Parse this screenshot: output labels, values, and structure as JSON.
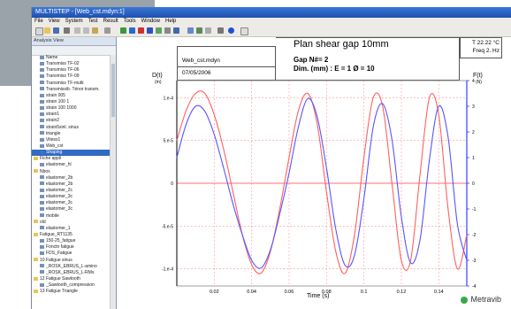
{
  "window": {
    "title": "MULTISTEP - [Web_cst.mdyn:1]",
    "menus": [
      "File",
      "View",
      "System",
      "Test",
      "Result",
      "Tools",
      "Window",
      "Help"
    ]
  },
  "sidebar": {
    "header": "Analysis View",
    "items": [
      {
        "label": "Name",
        "kind": "item"
      },
      {
        "label": "Transmiss TF-02",
        "kind": "item"
      },
      {
        "label": "Transmiss TF-06",
        "kind": "item"
      },
      {
        "label": "Transmiss TF-09",
        "kind": "item"
      },
      {
        "label": "Transmiss TF-multi",
        "kind": "item"
      },
      {
        "label": "Transmissib. Ténor transm.",
        "kind": "item"
      },
      {
        "label": "strain 005",
        "kind": "item"
      },
      {
        "label": "strain 100 1",
        "kind": "item"
      },
      {
        "label": "strain 100 1000",
        "kind": "item"
      },
      {
        "label": "strain1",
        "kind": "item"
      },
      {
        "label": "strain2",
        "kind": "item"
      },
      {
        "label": "strain5sinl. sinus",
        "kind": "item"
      },
      {
        "label": "triangle",
        "kind": "item"
      },
      {
        "label": "Vitess1",
        "kind": "item"
      },
      {
        "label": "Web_cst",
        "kind": "item"
      },
      {
        "label": "Shaping",
        "kind": "selected"
      },
      {
        "label": "Fiche appli",
        "kind": "folder"
      },
      {
        "label": "elastomer_hl",
        "kind": "item"
      },
      {
        "label": "Nbox",
        "kind": "folder"
      },
      {
        "label": "elastomer_2b",
        "kind": "item"
      },
      {
        "label": "elastomer_2b",
        "kind": "item"
      },
      {
        "label": "elastomer_2c",
        "kind": "item"
      },
      {
        "label": "elastomer_3c",
        "kind": "item"
      },
      {
        "label": "elastomer_3c",
        "kind": "item"
      },
      {
        "label": "elastomer_3c",
        "kind": "item"
      },
      {
        "label": "mobile",
        "kind": "item"
      },
      {
        "label": "old",
        "kind": "folder"
      },
      {
        "label": "elastomer_1",
        "kind": "item"
      },
      {
        "label": "Fatigue_RT1135",
        "kind": "folder"
      },
      {
        "label": "150-25_fatigue",
        "kind": "item"
      },
      {
        "label": "Fonctn fatigue",
        "kind": "item"
      },
      {
        "label": "FDS_Fatigue",
        "kind": "item"
      },
      {
        "label": "10 Fatigue sinus",
        "kind": "folder"
      },
      {
        "label": "_ROSK_EBRUS_L-amino",
        "kind": "item"
      },
      {
        "label": "_ROSK_EBRUS_L-RMs",
        "kind": "item"
      },
      {
        "label": "12 Fatigue Sawtooth",
        "kind": "folder"
      },
      {
        "label": "_Sawtooth_compression",
        "kind": "item"
      },
      {
        "label": "13 Fatigue Triangle",
        "kind": "folder"
      }
    ]
  },
  "header": {
    "file": "Web_cst.mdyn",
    "date": "07/05/2006",
    "test_title": "Plan shear gap 10mm",
    "gap_line": "Gap N#= 2",
    "dim_line": "Dim. (mm) : E = 1  Ø = 10",
    "temperature": "T 22.22 °C",
    "frequency": "Freq 2.  Hz"
  },
  "branding": {
    "logo_text": "Metravib",
    "logo_color": "#3aa84a"
  },
  "chart_data": {
    "type": "line",
    "xlabel": "Time (s)",
    "ylabel_left": "D(t)",
    "ylabel_left_unit": "(m)",
    "ylabel_right": "F(t)",
    "ylabel_right_unit": "(N)",
    "x_tick_labels": [
      "0.02",
      "0.04",
      "0.06",
      "0.08",
      "0.1",
      "0.12",
      "0.14"
    ],
    "y_left_tick_labels": [
      "1.e-4",
      "5.e-5",
      "0",
      "-5.e-5",
      "-1.e-4"
    ],
    "y_right_tick_labels": [
      "4",
      "3",
      "2",
      "1",
      "0",
      "-1",
      "-2",
      "-3",
      "-4"
    ],
    "xlim": [
      0,
      0.155
    ],
    "ylim_left": [
      -0.00012,
      0.00012
    ],
    "ylim_right": [
      -4,
      4
    ],
    "grid": true,
    "colors": {
      "displacement": "#ff6060",
      "force": "#5555ff",
      "zero_line": "#ff4040"
    },
    "series": [
      {
        "axis": "left",
        "x": [
          0.0,
          0.005,
          0.01,
          0.015,
          0.02,
          0.025,
          0.03,
          0.035,
          0.04,
          0.045,
          0.05,
          0.055,
          0.06,
          0.065,
          0.07,
          0.075,
          0.08,
          0.085,
          0.09,
          0.095,
          0.1,
          0.105,
          0.11,
          0.115,
          0.12,
          0.125,
          0.13,
          0.135,
          0.14,
          0.145,
          0.15,
          0.155
        ],
        "y": [
          5e-05,
          8.5e-05,
          0.000105,
          0.000105,
          8e-05,
          4e-05,
          -1e-05,
          -6e-05,
          -9.5e-05,
          -0.000105,
          -8e-05,
          -3e-05,
          3e-05,
          8.5e-05,
          0.000105,
          7e-05,
          -1e-05,
          -8e-05,
          -0.000105,
          -6e-05,
          3e-05,
          0.0001,
          9e-05,
          0.0,
          -9e-05,
          -9e-05,
          1e-05,
          0.0001,
          8e-05,
          -3e-05,
          -0.0001,
          -6e-05
        ]
      },
      {
        "axis": "right",
        "x": [
          0.0,
          0.005,
          0.01,
          0.015,
          0.02,
          0.025,
          0.03,
          0.035,
          0.04,
          0.045,
          0.05,
          0.055,
          0.06,
          0.065,
          0.07,
          0.075,
          0.08,
          0.085,
          0.09,
          0.095,
          0.1,
          0.105,
          0.11,
          0.115,
          0.12,
          0.125,
          0.13,
          0.135,
          0.14,
          0.145,
          0.15,
          0.155
        ],
        "y": [
          1.0,
          2.3,
          3.0,
          2.8,
          1.9,
          0.6,
          -0.8,
          -2.0,
          -3.0,
          -3.3,
          -2.6,
          -1.2,
          0.4,
          2.2,
          3.3,
          2.6,
          0.6,
          -1.8,
          -3.2,
          -2.8,
          -0.6,
          2.2,
          3.1,
          1.7,
          -1.3,
          -3.1,
          -2.2,
          0.9,
          3.0,
          1.8,
          -1.6,
          -3.0
        ]
      }
    ]
  }
}
